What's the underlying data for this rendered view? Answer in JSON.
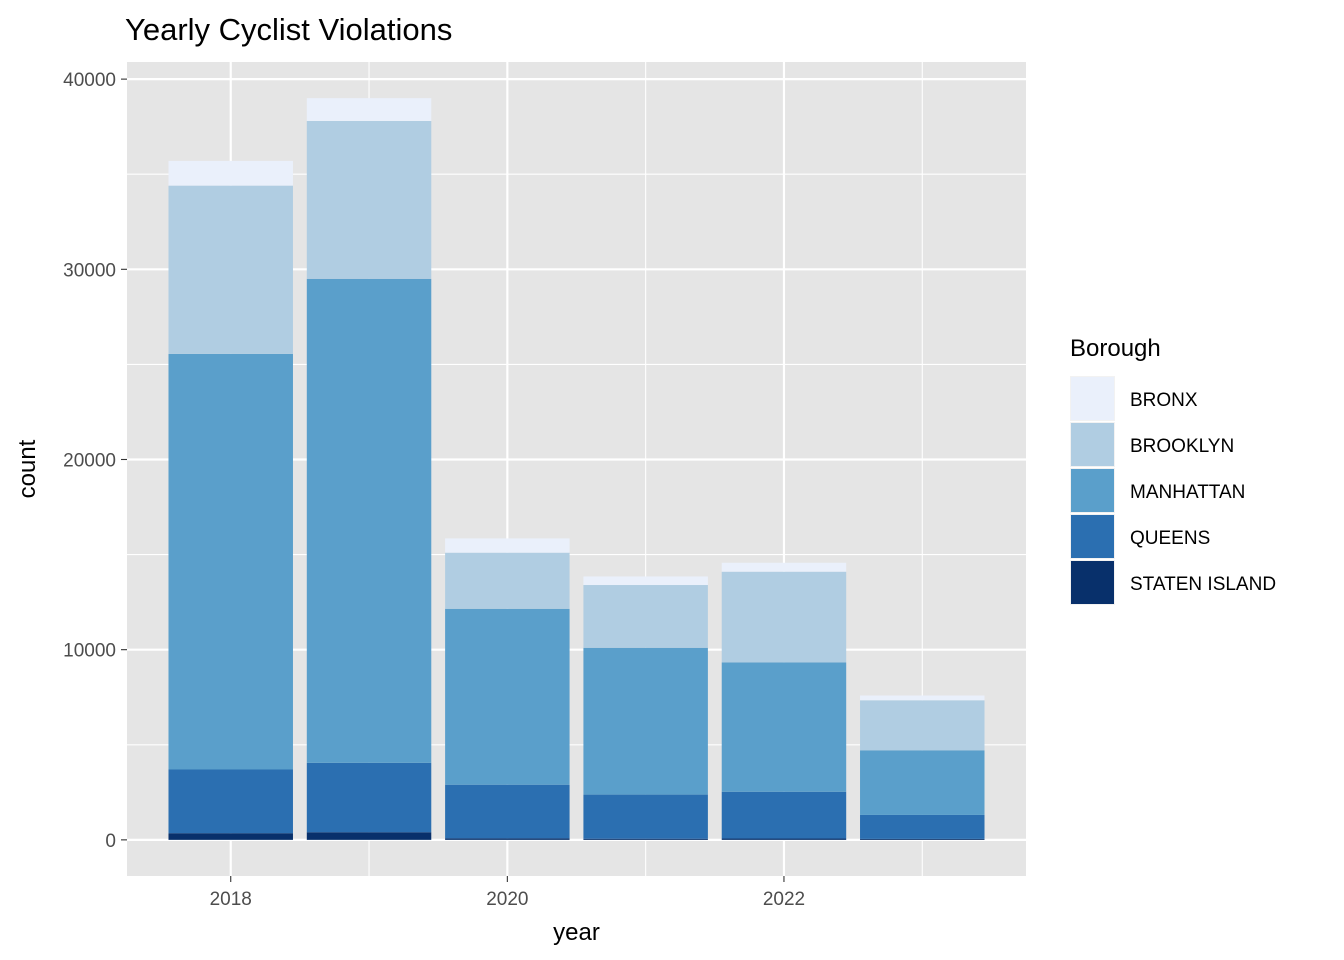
{
  "chart_data": {
    "type": "bar",
    "stacked": true,
    "title": "Yearly Cyclist Violations",
    "xlabel": "year",
    "ylabel": "count",
    "x": [
      2018,
      2019,
      2020,
      2021,
      2022,
      2023
    ],
    "x_ticks": [
      2018,
      2020,
      2022
    ],
    "xlim": [
      2017.25,
      2023.75
    ],
    "y_ticks": [
      0,
      10000,
      20000,
      30000,
      40000
    ],
    "ylim": [
      -1900,
      40900
    ],
    "grid": true,
    "legend": {
      "title": "Borough",
      "position": "right"
    },
    "series": [
      {
        "name": "STATEN ISLAND",
        "color": "#08306b",
        "values": [
          350,
          400,
          80,
          60,
          70,
          50
        ]
      },
      {
        "name": "QUEENS",
        "color": "#2b6fb1",
        "values": [
          3350,
          3650,
          2820,
          2320,
          2460,
          1260
        ]
      },
      {
        "name": "MANHATTAN",
        "color": "#5a9fcb",
        "values": [
          21850,
          25450,
          9250,
          7720,
          6800,
          3400
        ]
      },
      {
        "name": "BROOKLYN",
        "color": "#b0cde2",
        "values": [
          8850,
          8300,
          2950,
          3300,
          4770,
          2630
        ]
      },
      {
        "name": "BRONX",
        "color": "#eaf0fb",
        "values": [
          1300,
          1200,
          750,
          450,
          470,
          250
        ]
      }
    ],
    "legend_order": [
      "BRONX",
      "BROOKLYN",
      "MANHATTAN",
      "QUEENS",
      "STATEN ISLAND"
    ]
  }
}
